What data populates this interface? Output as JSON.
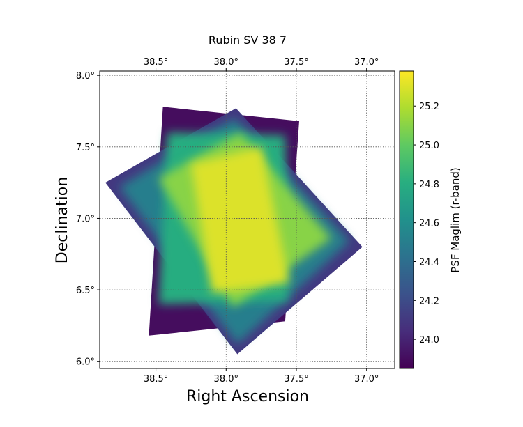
{
  "chart_data": {
    "type": "heatmap",
    "title": "Rubin SV 38 7",
    "xlabel": "Right Ascension",
    "ylabel": "Declination",
    "xlim": [
      38.9,
      36.8
    ],
    "ylim": [
      5.95,
      8.03
    ],
    "x_ticks": [
      {
        "value": 38.5,
        "label": "38.5°"
      },
      {
        "value": 38.0,
        "label": "38.0°"
      },
      {
        "value": 37.5,
        "label": "37.5°"
      },
      {
        "value": 37.0,
        "label": "37.0°"
      }
    ],
    "y_ticks": [
      {
        "value": 6.0,
        "label": "6.0°"
      },
      {
        "value": 6.5,
        "label": "6.5°"
      },
      {
        "value": 7.0,
        "label": "7.0°"
      },
      {
        "value": 7.5,
        "label": "7.5°"
      },
      {
        "value": 8.0,
        "label": "8.0°"
      }
    ],
    "grid": true,
    "colormap": "viridis",
    "colorbar": {
      "label": "PSF Maglim (r-band)",
      "range": [
        23.85,
        25.38
      ],
      "ticks": [
        {
          "value": 24.0,
          "label": "24.0"
        },
        {
          "value": 24.2,
          "label": "24.2"
        },
        {
          "value": 24.4,
          "label": "24.4"
        },
        {
          "value": 24.6,
          "label": "24.6"
        },
        {
          "value": 24.8,
          "label": "24.8"
        },
        {
          "value": 25.0,
          "label": "25.0"
        },
        {
          "value": 25.2,
          "label": "25.2"
        }
      ]
    },
    "coverage_layers": [
      {
        "name": "outer-footprint",
        "value": 23.9,
        "corners": [
          [
            38.45,
            7.78
          ],
          [
            37.48,
            7.68
          ],
          [
            37.58,
            6.28
          ],
          [
            38.55,
            6.18
          ]
        ]
      },
      {
        "name": "rotated-footprint-edge",
        "value": 24.1,
        "corners": [
          [
            38.86,
            7.25
          ],
          [
            37.93,
            7.77
          ],
          [
            37.03,
            6.8
          ],
          [
            37.92,
            6.05
          ]
        ]
      },
      {
        "name": "rotated-footprint",
        "value": 24.5,
        "corners": [
          [
            38.76,
            7.22
          ],
          [
            37.94,
            7.7
          ],
          [
            37.12,
            6.84
          ],
          [
            37.92,
            6.12
          ]
        ]
      },
      {
        "name": "inner-footprint",
        "value": 24.8,
        "corners": [
          [
            38.42,
            7.6
          ],
          [
            37.58,
            7.58
          ],
          [
            37.56,
            6.42
          ],
          [
            38.48,
            6.4
          ]
        ]
      },
      {
        "name": "overlap-core",
        "value": 25.1,
        "corners": [
          [
            38.48,
            7.28
          ],
          [
            37.9,
            7.6
          ],
          [
            37.25,
            6.86
          ],
          [
            37.95,
            6.38
          ]
        ]
      },
      {
        "name": "deepest-core",
        "value": 25.3,
        "corners": [
          [
            38.25,
            7.38
          ],
          [
            37.75,
            7.5
          ],
          [
            37.55,
            6.55
          ],
          [
            38.1,
            6.48
          ]
        ]
      }
    ]
  }
}
